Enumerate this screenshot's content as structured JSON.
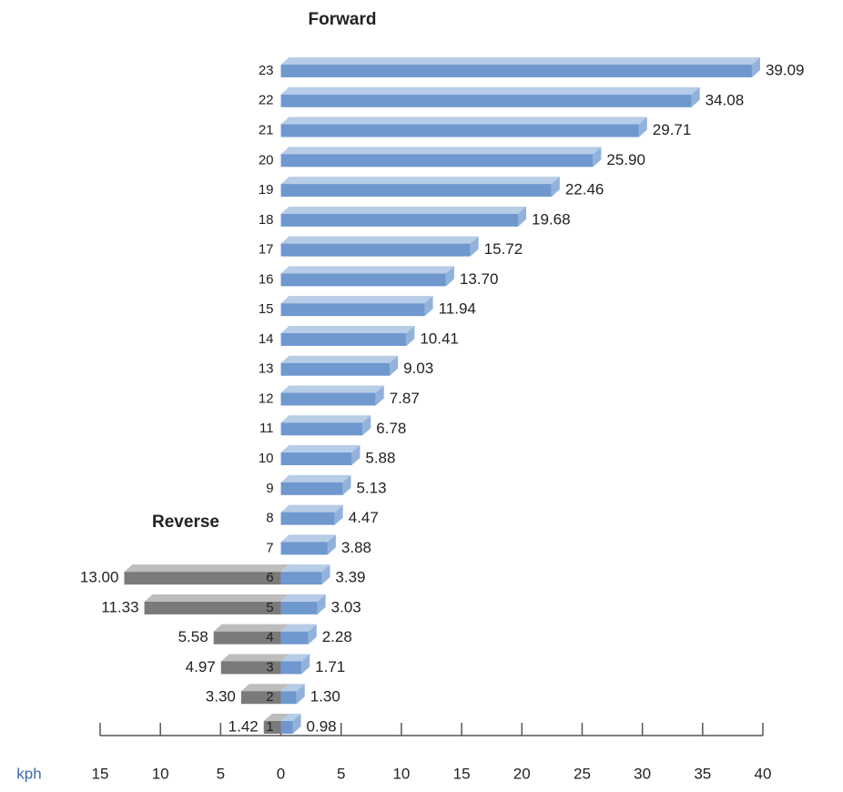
{
  "chart_data": {
    "type": "bar",
    "orientation": "horizontal",
    "titles": [
      "Forward",
      "Reverse"
    ],
    "xlabel": "kph",
    "categories": [
      "1",
      "2",
      "3",
      "4",
      "5",
      "6",
      "7",
      "8",
      "9",
      "10",
      "11",
      "12",
      "13",
      "14",
      "15",
      "16",
      "17",
      "18",
      "19",
      "20",
      "21",
      "22",
      "23"
    ],
    "series": [
      {
        "name": "Forward",
        "color": "#6f98cf",
        "values": [
          0.98,
          1.3,
          1.71,
          2.28,
          3.03,
          3.39,
          3.88,
          4.47,
          5.13,
          5.88,
          6.78,
          7.87,
          9.03,
          10.41,
          11.94,
          13.7,
          15.72,
          19.68,
          22.46,
          25.9,
          29.71,
          34.08,
          39.09
        ],
        "value_labels": [
          "0.98",
          "1.30",
          "1.71",
          "2.28",
          "3.03",
          "3.39",
          "3.88",
          "4.47",
          "5.13",
          "5.88",
          "6.78",
          "7.87",
          "9.03",
          "10.41",
          "11.94",
          "13.70",
          "15.72",
          "19.68",
          "22.46",
          "25.90",
          "29.71",
          "34.08",
          "39.09"
        ]
      },
      {
        "name": "Reverse",
        "color": "#7a7a7a",
        "values": [
          -1.42,
          -3.3,
          -4.97,
          -5.58,
          -11.33,
          -13.0,
          null,
          null,
          null,
          null,
          null,
          null,
          null,
          null,
          null,
          null,
          null,
          null,
          null,
          null,
          null,
          null,
          null
        ],
        "value_labels": [
          "1.42",
          "3.30",
          "4.97",
          "5.58",
          "11.33",
          "13.00",
          null,
          null,
          null,
          null,
          null,
          null,
          null,
          null,
          null,
          null,
          null,
          null,
          null,
          null,
          null,
          null,
          null
        ]
      }
    ],
    "xlim": [
      -15,
      40
    ],
    "xticks": [
      {
        "value": -15,
        "label": "15"
      },
      {
        "value": -10,
        "label": "10"
      },
      {
        "value": -5,
        "label": "5"
      },
      0,
      5,
      10,
      15,
      20,
      25,
      30,
      35,
      40
    ]
  }
}
